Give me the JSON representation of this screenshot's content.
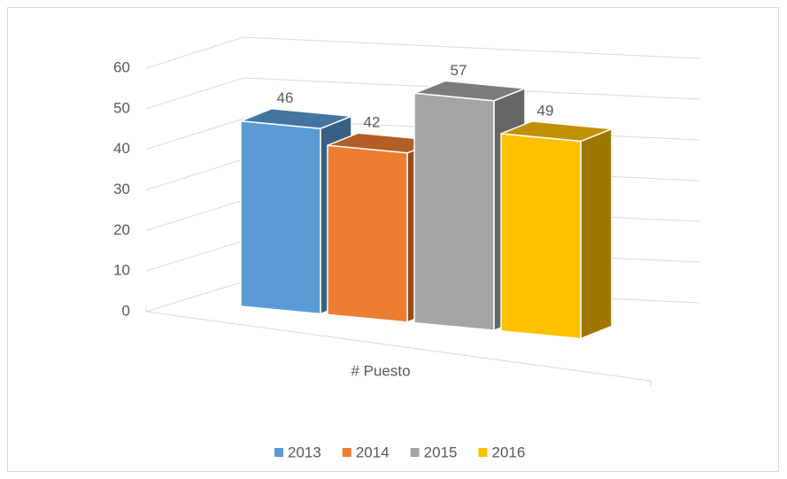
{
  "chart_data": {
    "type": "bar",
    "three_d": true,
    "categories": [
      "# Puesto"
    ],
    "series": [
      {
        "name": "2013",
        "color": "#5b9bd5",
        "values": [
          46
        ]
      },
      {
        "name": "2014",
        "color": "#ed7d31",
        "values": [
          42
        ]
      },
      {
        "name": "2015",
        "color": "#a5a5a5",
        "values": [
          57
        ]
      },
      {
        "name": "2016",
        "color": "#ffc000",
        "values": [
          49
        ]
      }
    ],
    "ylim": [
      0,
      60
    ],
    "yticks": [
      0,
      10,
      20,
      30,
      40,
      50,
      60
    ],
    "grid": true,
    "legend": "bottom",
    "data_labels": true
  }
}
